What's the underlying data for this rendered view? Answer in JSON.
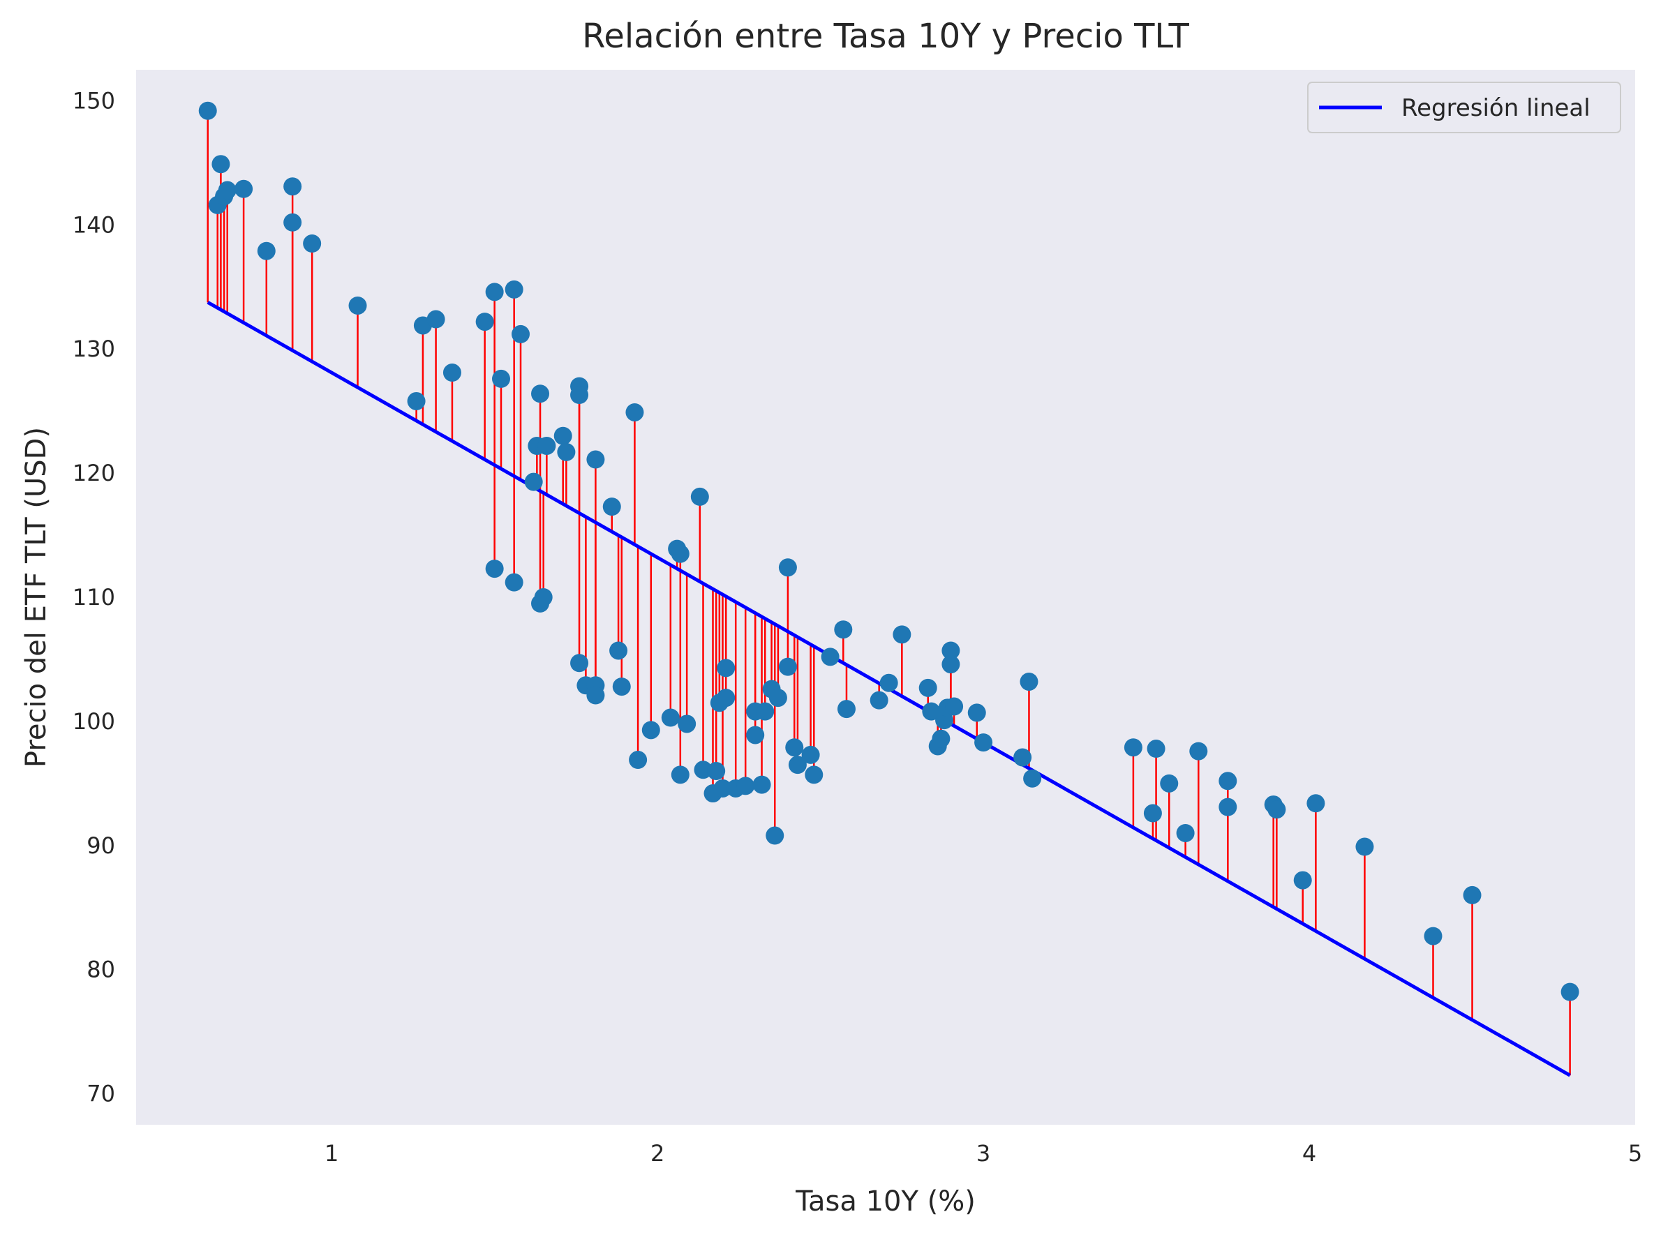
{
  "chart_data": {
    "type": "scatter",
    "title": "Relación entre Tasa 10Y y Precio TLT",
    "xlabel": "Tasa 10Y (%)",
    "ylabel": "Precio del ETF TLT (USD)",
    "xlim": [
      0.4,
      5.0
    ],
    "ylim": [
      67.5,
      152.5
    ],
    "xticks": [
      1,
      2,
      3,
      4,
      5
    ],
    "yticks": [
      70,
      80,
      90,
      100,
      110,
      120,
      130,
      140,
      150
    ],
    "grid": false,
    "legend": {
      "position": "top-right",
      "entries": [
        "Regresión lineal"
      ]
    },
    "colors": {
      "points": "#1f77b4",
      "regression": "#0000ff",
      "residuals": "#ff0000",
      "background": "#eaeaf2"
    },
    "regression": {
      "slope": -14.9,
      "intercept": 143.0,
      "x_range": [
        0.62,
        4.8
      ]
    },
    "points": [
      [
        0.62,
        149.2
      ],
      [
        0.65,
        141.6
      ],
      [
        0.66,
        144.9
      ],
      [
        0.67,
        142.3
      ],
      [
        0.68,
        142.8
      ],
      [
        0.73,
        142.9
      ],
      [
        0.8,
        137.9
      ],
      [
        0.88,
        143.1
      ],
      [
        0.88,
        140.2
      ],
      [
        0.94,
        138.5
      ],
      [
        1.08,
        133.5
      ],
      [
        1.26,
        125.8
      ],
      [
        1.28,
        131.9
      ],
      [
        1.32,
        132.4
      ],
      [
        1.37,
        128.1
      ],
      [
        1.47,
        132.2
      ],
      [
        1.5,
        134.6
      ],
      [
        1.5,
        112.3
      ],
      [
        1.52,
        127.6
      ],
      [
        1.56,
        134.8
      ],
      [
        1.56,
        111.2
      ],
      [
        1.58,
        131.2
      ],
      [
        1.62,
        119.3
      ],
      [
        1.63,
        122.2
      ],
      [
        1.64,
        126.4
      ],
      [
        1.64,
        109.5
      ],
      [
        1.65,
        110.0
      ],
      [
        1.66,
        122.2
      ],
      [
        1.71,
        123.0
      ],
      [
        1.72,
        121.7
      ],
      [
        1.76,
        127.0
      ],
      [
        1.76,
        126.3
      ],
      [
        1.76,
        104.7
      ],
      [
        1.78,
        102.9
      ],
      [
        1.81,
        121.1
      ],
      [
        1.81,
        102.9
      ],
      [
        1.81,
        102.1
      ],
      [
        1.86,
        117.3
      ],
      [
        1.88,
        105.7
      ],
      [
        1.89,
        102.8
      ],
      [
        1.93,
        124.9
      ],
      [
        1.94,
        96.9
      ],
      [
        1.98,
        99.3
      ],
      [
        2.04,
        100.3
      ],
      [
        2.06,
        113.9
      ],
      [
        2.07,
        113.5
      ],
      [
        2.07,
        95.7
      ],
      [
        2.09,
        99.8
      ],
      [
        2.13,
        118.1
      ],
      [
        2.14,
        96.1
      ],
      [
        2.17,
        94.2
      ],
      [
        2.18,
        96.0
      ],
      [
        2.19,
        101.5
      ],
      [
        2.2,
        94.6
      ],
      [
        2.21,
        101.9
      ],
      [
        2.21,
        104.3
      ],
      [
        2.24,
        94.6
      ],
      [
        2.27,
        94.8
      ],
      [
        2.3,
        98.9
      ],
      [
        2.3,
        100.8
      ],
      [
        2.32,
        94.9
      ],
      [
        2.33,
        100.8
      ],
      [
        2.35,
        102.6
      ],
      [
        2.36,
        90.8
      ],
      [
        2.37,
        101.9
      ],
      [
        2.4,
        112.4
      ],
      [
        2.4,
        104.4
      ],
      [
        2.42,
        97.9
      ],
      [
        2.43,
        96.5
      ],
      [
        2.47,
        97.3
      ],
      [
        2.48,
        95.7
      ],
      [
        2.53,
        105.2
      ],
      [
        2.57,
        107.4
      ],
      [
        2.58,
        101.0
      ],
      [
        2.68,
        101.7
      ],
      [
        2.71,
        103.1
      ],
      [
        2.75,
        107.0
      ],
      [
        2.83,
        102.7
      ],
      [
        2.84,
        100.8
      ],
      [
        2.86,
        98.0
      ],
      [
        2.87,
        98.6
      ],
      [
        2.88,
        100.1
      ],
      [
        2.89,
        101.1
      ],
      [
        2.9,
        105.7
      ],
      [
        2.9,
        104.6
      ],
      [
        2.91,
        101.2
      ],
      [
        2.98,
        100.7
      ],
      [
        3.0,
        98.3
      ],
      [
        3.12,
        97.1
      ],
      [
        3.14,
        103.2
      ],
      [
        3.15,
        95.4
      ],
      [
        3.46,
        97.9
      ],
      [
        3.52,
        92.6
      ],
      [
        3.53,
        97.8
      ],
      [
        3.57,
        95.0
      ],
      [
        3.62,
        91.0
      ],
      [
        3.66,
        97.6
      ],
      [
        3.75,
        95.2
      ],
      [
        3.75,
        93.1
      ],
      [
        3.89,
        93.3
      ],
      [
        3.9,
        92.9
      ],
      [
        3.98,
        87.2
      ],
      [
        4.02,
        93.4
      ],
      [
        4.17,
        89.9
      ],
      [
        4.38,
        82.7
      ],
      [
        4.5,
        86.0
      ],
      [
        4.8,
        78.2
      ]
    ]
  }
}
